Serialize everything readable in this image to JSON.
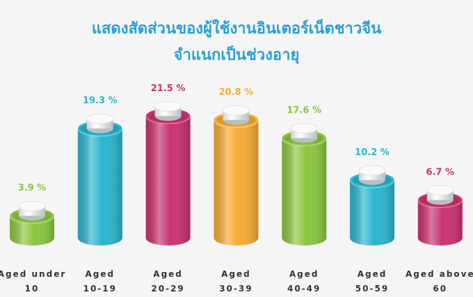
{
  "chart_data": {
    "type": "bar",
    "title": [
      "แสดงสัดส่วนของผู้ใช้งานอินเตอร์เน็ตชาวจีน",
      "จำแนกเป็นช่วงอายุ"
    ],
    "categories": [
      "Aged under\n10",
      "Aged\n10-19",
      "Aged\n20-29",
      "Aged\n30-39",
      "Aged\n40-49",
      "Aged\n50-59",
      "Aged above\n60"
    ],
    "values": [
      3.9,
      19.3,
      21.5,
      20.8,
      17.6,
      10.2,
      6.7
    ],
    "value_labels": [
      "3.9 %",
      "19.3 %",
      "21.5 %",
      "20.8 %",
      "17.6 %",
      "10.2 %",
      "6.7 %"
    ],
    "colors": [
      "#8cc63f",
      "#2bb5cf",
      "#c93370",
      "#f7ab33",
      "#8cc63f",
      "#2bb5cf",
      "#c93370"
    ]
  }
}
